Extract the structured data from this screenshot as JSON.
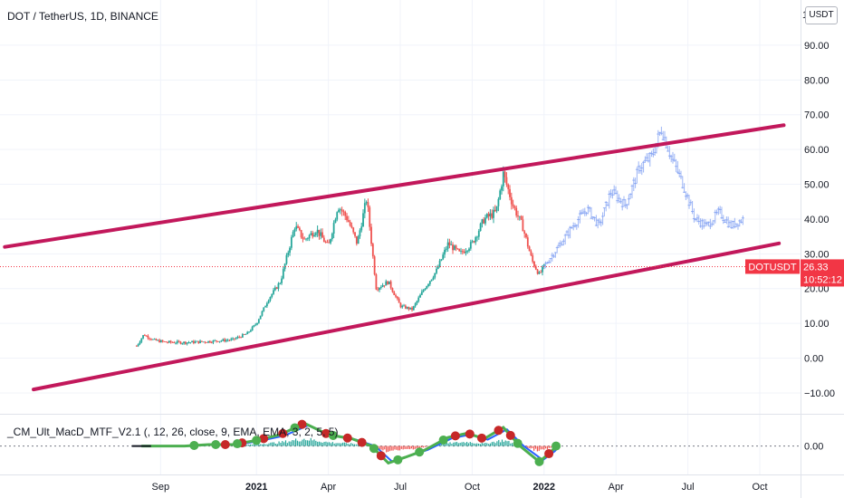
{
  "header": {
    "symbol_title": "DOT / TetherUS, 1D, BINANCE",
    "currency_button": "USDT"
  },
  "indicator": {
    "title": "_CM_Ult_MacD_MTF_V2.1 (, 12, 26, close, 9, EMA, EMA, 3, 2, 5, 5)",
    "zero_label": "0.00"
  },
  "price_label": {
    "symbol": "DOTUSDT",
    "price": "26.33",
    "countdown": "10:52:12",
    "value": 26.33,
    "color": "#f23645"
  },
  "colors": {
    "up": "#26a69a",
    "down": "#ef5350",
    "channel": "#c2185b",
    "projection": "#7b9cf2",
    "macd_green": "#4caf50",
    "macd_red": "#c62828",
    "macd_blue": "#2962ff",
    "hist_up": "#26a69a",
    "hist_down": "#ef5350"
  },
  "chart_data": {
    "type": "candlestick",
    "y_axis": {
      "ticks": [
        -10,
        0,
        10,
        20,
        30,
        40,
        50,
        60,
        70,
        80,
        90
      ],
      "tick_labels": [
        "−10.00",
        "0.00",
        "10.00",
        "20.00",
        "30.00",
        "40.00",
        "50.00",
        "60.00",
        "70.00",
        "80.00",
        "90.00"
      ],
      "top_partial_label": "1",
      "range": [
        -16,
        103
      ]
    },
    "x_axis": {
      "labels": [
        {
          "text": "Sep",
          "month_index": 2,
          "bold": false
        },
        {
          "text": "2021",
          "month_index": 6,
          "bold": true
        },
        {
          "text": "Apr",
          "month_index": 9,
          "bold": false
        },
        {
          "text": "Jul",
          "month_index": 12,
          "bold": false
        },
        {
          "text": "Oct",
          "month_index": 15,
          "bold": false
        },
        {
          "text": "2022",
          "month_index": 18,
          "bold": true
        },
        {
          "text": "Apr",
          "month_index": 21,
          "bold": false
        },
        {
          "text": "Jul",
          "month_index": 24,
          "bold": false
        },
        {
          "text": "Oct",
          "month_index": 27,
          "bold": false
        }
      ],
      "range_months": [
        -4.7,
        28.7
      ],
      "note": "month_index 0 = 2020-07"
    },
    "price_path": [
      {
        "t": 1.0,
        "v": 3.5
      },
      {
        "t": 1.3,
        "v": 6.8
      },
      {
        "t": 1.7,
        "v": 5.2
      },
      {
        "t": 2.2,
        "v": 4.6
      },
      {
        "t": 3.0,
        "v": 4.5
      },
      {
        "t": 4.0,
        "v": 4.8
      },
      {
        "t": 5.0,
        "v": 5.3
      },
      {
        "t": 5.6,
        "v": 7.0
      },
      {
        "t": 6.0,
        "v": 10.0
      },
      {
        "t": 6.5,
        "v": 17.0
      },
      {
        "t": 7.0,
        "v": 22.0
      },
      {
        "t": 7.6,
        "v": 38.0
      },
      {
        "t": 8.0,
        "v": 34.0
      },
      {
        "t": 8.5,
        "v": 37.0
      },
      {
        "t": 9.0,
        "v": 32.0
      },
      {
        "t": 9.4,
        "v": 44.0
      },
      {
        "t": 9.8,
        "v": 40.0
      },
      {
        "t": 10.2,
        "v": 33.0
      },
      {
        "t": 10.6,
        "v": 46.0
      },
      {
        "t": 11.0,
        "v": 20.0
      },
      {
        "t": 11.5,
        "v": 22.0
      },
      {
        "t": 12.0,
        "v": 15.0
      },
      {
        "t": 12.5,
        "v": 14.0
      },
      {
        "t": 13.0,
        "v": 20.0
      },
      {
        "t": 13.5,
        "v": 25.0
      },
      {
        "t": 14.0,
        "v": 33.0
      },
      {
        "t": 14.5,
        "v": 30.0
      },
      {
        "t": 15.0,
        "v": 33.0
      },
      {
        "t": 15.5,
        "v": 40.0
      },
      {
        "t": 16.0,
        "v": 42.0
      },
      {
        "t": 16.3,
        "v": 53.0
      },
      {
        "t": 16.7,
        "v": 44.0
      },
      {
        "t": 17.1,
        "v": 38.0
      },
      {
        "t": 17.5,
        "v": 28.0
      },
      {
        "t": 17.8,
        "v": 24.0
      },
      {
        "t": 18.0,
        "v": 26.33
      }
    ],
    "projection_path": [
      {
        "t": 18.0,
        "v": 26.33
      },
      {
        "t": 18.6,
        "v": 32.0
      },
      {
        "t": 19.2,
        "v": 38.0
      },
      {
        "t": 19.8,
        "v": 43.0
      },
      {
        "t": 20.3,
        "v": 38.0
      },
      {
        "t": 20.8,
        "v": 48.0
      },
      {
        "t": 21.4,
        "v": 44.0
      },
      {
        "t": 22.0,
        "v": 55.0
      },
      {
        "t": 22.5,
        "v": 58.0
      },
      {
        "t": 22.9,
        "v": 66.0
      },
      {
        "t": 23.3,
        "v": 58.0
      },
      {
        "t": 23.8,
        "v": 50.0
      },
      {
        "t": 24.3,
        "v": 40.0
      },
      {
        "t": 24.8,
        "v": 38.0
      },
      {
        "t": 25.3,
        "v": 42.0
      },
      {
        "t": 25.8,
        "v": 38.0
      },
      {
        "t": 26.3,
        "v": 40.0
      }
    ],
    "channel_lines": [
      {
        "name": "upper",
        "from": {
          "t": -4.5,
          "v": 32.0
        },
        "to": {
          "t": 28.0,
          "v": 67.0
        }
      },
      {
        "name": "lower",
        "from": {
          "t": -3.3,
          "v": -9.0
        },
        "to": {
          "t": 27.8,
          "v": 33.0
        }
      }
    ],
    "macd": {
      "zero": 0,
      "line": [
        {
          "t": 1.2,
          "v": 0.0
        },
        {
          "t": 2.0,
          "v": 0.0
        },
        {
          "t": 3.0,
          "v": 0.0
        },
        {
          "t": 4.0,
          "v": 0.1
        },
        {
          "t": 5.0,
          "v": 0.1
        },
        {
          "t": 6.0,
          "v": 0.4
        },
        {
          "t": 7.0,
          "v": 0.8
        },
        {
          "t": 8.0,
          "v": 1.6
        },
        {
          "t": 9.0,
          "v": 0.8
        },
        {
          "t": 10.0,
          "v": 0.5
        },
        {
          "t": 10.8,
          "v": 0.0
        },
        {
          "t": 11.5,
          "v": -1.2
        },
        {
          "t": 12.2,
          "v": -0.8
        },
        {
          "t": 13.0,
          "v": -0.3
        },
        {
          "t": 14.0,
          "v": 0.6
        },
        {
          "t": 14.8,
          "v": 0.9
        },
        {
          "t": 15.5,
          "v": 0.5
        },
        {
          "t": 16.3,
          "v": 1.3
        },
        {
          "t": 17.0,
          "v": 0.0
        },
        {
          "t": 17.8,
          "v": -1.1
        },
        {
          "t": 18.3,
          "v": -0.4
        },
        {
          "t": 18.5,
          "v": 0.0
        }
      ],
      "red_dots": [
        4.7,
        5.4,
        6.3,
        7.1,
        7.9,
        8.9,
        9.8,
        10.4,
        11.2,
        14.3,
        14.9,
        15.4,
        16.1,
        16.6,
        18.2
      ],
      "green_dots": [
        3.4,
        4.3,
        5.2,
        6.0,
        7.6,
        9.2,
        10.9,
        11.9,
        12.8,
        13.8,
        16.9,
        17.8,
        18.5
      ],
      "y_range": [
        -2.0,
        2.2
      ]
    }
  }
}
